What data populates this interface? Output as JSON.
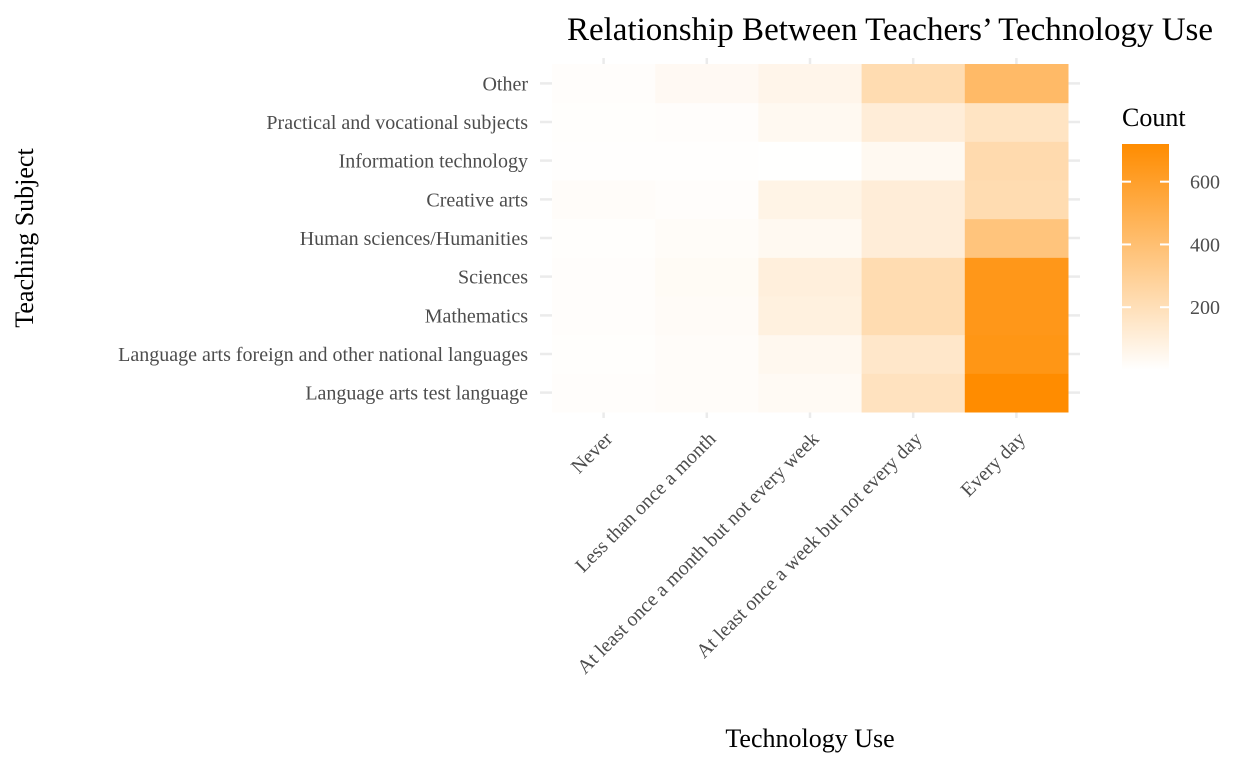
{
  "chart_data": {
    "type": "heatmap",
    "title": "Relationship Between Teachers’ Technology Use",
    "xlabel": "Technology Use",
    "ylabel": "Teaching Subject",
    "x": [
      "Never",
      "Less than once a month",
      "At least once a month but not every week",
      "At least once a week but not every day",
      "Every day"
    ],
    "y": [
      "Language arts test language",
      "Language arts foreign and other national languages",
      "Mathematics",
      "Sciences",
      "Human sciences/Humanities",
      "Creative arts",
      "Information technology",
      "Practical and vocational subjects",
      "Other"
    ],
    "values": [
      [
        12,
        18,
        30,
        180,
        720
      ],
      [
        8,
        18,
        45,
        150,
        660
      ],
      [
        10,
        22,
        90,
        220,
        650
      ],
      [
        10,
        28,
        100,
        220,
        650
      ],
      [
        8,
        20,
        40,
        110,
        370
      ],
      [
        18,
        10,
        70,
        110,
        220
      ],
      [
        5,
        5,
        3,
        40,
        230
      ],
      [
        8,
        12,
        40,
        110,
        170
      ],
      [
        10,
        35,
        60,
        220,
        430
      ]
    ],
    "legend": {
      "title": "Count",
      "ticks": [
        200,
        400,
        600
      ],
      "range": [
        0,
        720
      ],
      "placement": "right"
    },
    "colors": {
      "low": "#ffffff",
      "high": "#ff8c00",
      "grid": "#ebebeb"
    },
    "grid": true
  }
}
